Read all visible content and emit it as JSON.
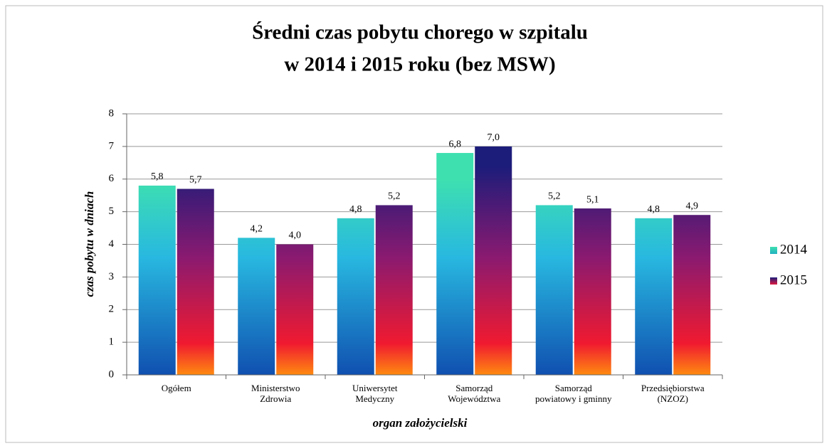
{
  "chart_data": {
    "type": "bar",
    "title": [
      "Średni  czas pobytu chorego w szpitalu",
      "w 2014 i  2015  roku (bez MSW)"
    ],
    "categories": [
      [
        "Ogółem"
      ],
      [
        "Ministerstwo",
        "Zdrowia"
      ],
      [
        "Uniwersytet",
        "Medyczny"
      ],
      [
        "Samorząd",
        "Województwa"
      ],
      [
        "Samorząd",
        "powiatowy i gminny"
      ],
      [
        "Przedsiębiorstwa",
        "(NZOZ)"
      ]
    ],
    "series": [
      {
        "name": "2014",
        "color": "#3ee0b0",
        "values": [
          5.8,
          4.2,
          4.8,
          6.8,
          5.2,
          4.8
        ],
        "value_labels": [
          "5,8",
          "4,2",
          "4,8",
          "6,8",
          "5,2",
          "4,8"
        ]
      },
      {
        "name": "2015",
        "color": "#1c1c7a",
        "values": [
          5.7,
          4.0,
          5.2,
          7.0,
          5.1,
          4.9
        ],
        "value_labels": [
          "5,7",
          "4,0",
          "5,2",
          "7,0",
          "5,1",
          "4,9"
        ]
      }
    ],
    "ylabel": "czas pobytu w dniach",
    "xlabel": "organ założycielski",
    "ylim": [
      0,
      8
    ],
    "yticks": [
      0,
      1,
      2,
      3,
      4,
      5,
      6,
      7,
      8
    ],
    "grid": true,
    "legend": "right"
  }
}
